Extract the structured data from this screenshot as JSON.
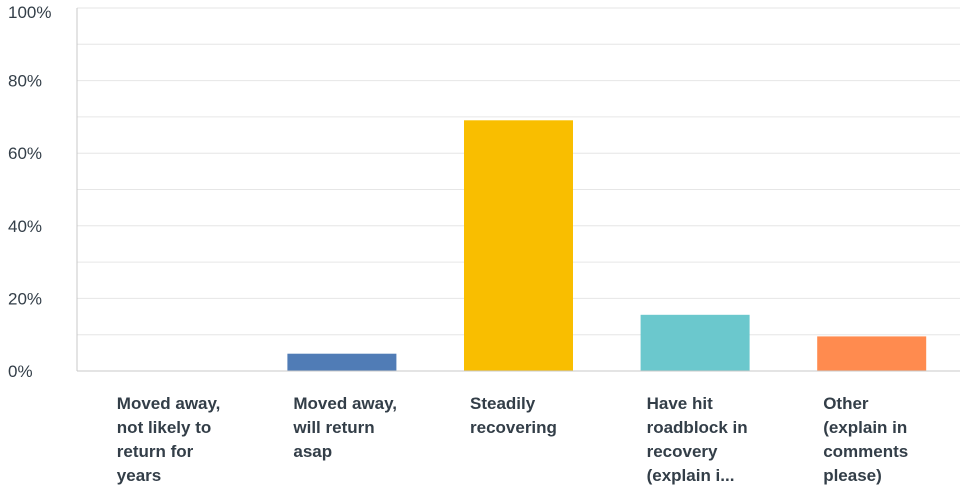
{
  "chart_data": {
    "type": "bar",
    "title": "",
    "xlabel": "",
    "ylabel": "",
    "ylim": [
      0,
      100
    ],
    "y_major_ticks": [
      0,
      20,
      40,
      60,
      80,
      100
    ],
    "y_tick_labels": [
      "0%",
      "20%",
      "40%",
      "60%",
      "80%",
      "100%"
    ],
    "y_minor_step": 10,
    "grid": true,
    "legend": "none",
    "categories": [
      "Moved away,\nnot likely to\nreturn for\nyears",
      "Moved away,\nwill return\nasap",
      "Steadily\nrecovering",
      "Have hit\nroadblock in\nrecovery\n(explain i...",
      "Other\n(explain in\ncomments\nplease)"
    ],
    "values": [
      0,
      4.76,
      69.05,
      15.48,
      9.52
    ],
    "colors": [
      "#21b9e6",
      "#507cb6",
      "#f9be00",
      "#6bc8cd",
      "#ff8b4f"
    ]
  }
}
